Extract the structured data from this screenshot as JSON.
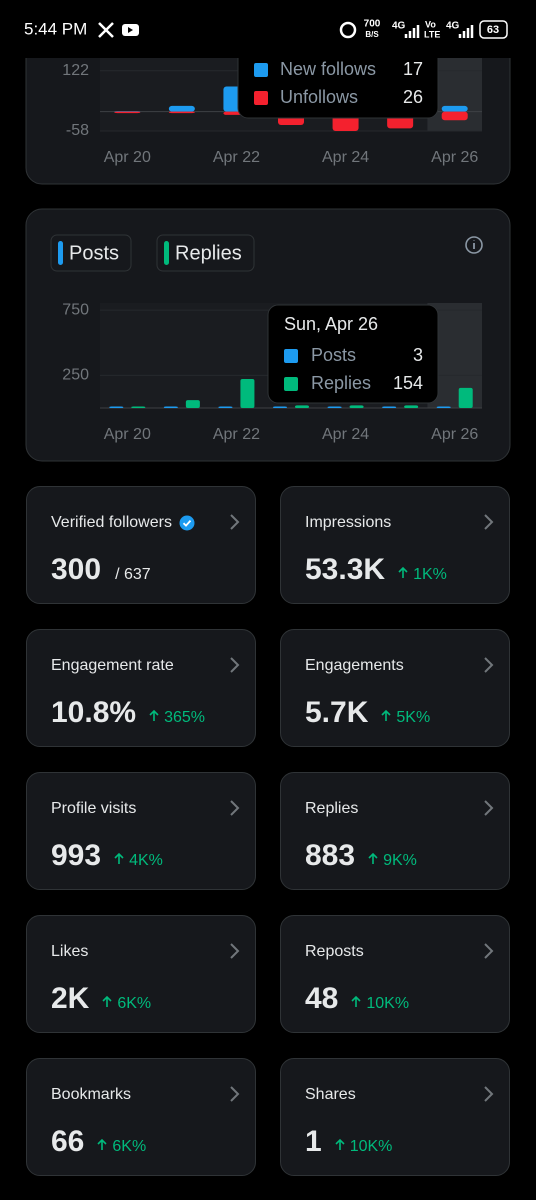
{
  "status_bar": {
    "time": "5:44 PM",
    "speed": "700",
    "speed_unit": "B/S",
    "network": "4G",
    "volte_top": "Vo",
    "volte_bottom": "LTE",
    "battery": "63"
  },
  "chart_data": [
    {
      "type": "bar",
      "categories": [
        "Apr 20",
        null,
        "Apr 22",
        null,
        "Apr 24",
        null,
        "Apr 26"
      ],
      "series": [
        {
          "name": "New follows",
          "color": "#1d9bf0",
          "values": [
            1,
            17,
            75,
            0,
            0,
            0,
            17
          ]
        },
        {
          "name": "Unfollows",
          "color": "#f4212e",
          "values": [
            -3,
            0,
            -10,
            -40,
            -58,
            -50,
            -26
          ],
          "value_labels": [
            null,
            null,
            null,
            null,
            null,
            null,
            "26"
          ]
        }
      ],
      "ylim": [
        -58,
        190
      ],
      "yticks": [
        -58,
        122
      ],
      "grid": true
    },
    {
      "type": "grouped_bar",
      "tooltip_title": "Sun, Apr 26",
      "categories": [
        "Apr 20",
        null,
        "Apr 22",
        null,
        "Apr 24",
        null,
        "Apr 26"
      ],
      "series": [
        {
          "name": "Posts",
          "color": "#1d9bf0",
          "values": [
            3,
            2,
            3,
            2,
            2,
            2,
            3
          ]
        },
        {
          "name": "Replies",
          "color": "#00ba7c",
          "values": [
            2,
            60,
            222,
            20,
            20,
            20,
            154
          ]
        }
      ],
      "ylim": [
        0,
        805
      ],
      "yticks": [
        250,
        750
      ],
      "grid": true
    }
  ],
  "stats": [
    {
      "title": "Verified followers",
      "value": "300",
      "total": "/ 637"
    },
    {
      "title": "Impressions",
      "value": "53.3K",
      "change": "1K%"
    },
    {
      "title": "Engagement rate",
      "value": "10.8%",
      "change": "365%"
    },
    {
      "title": "Engagements",
      "value": "5.7K",
      "change": "5K%"
    },
    {
      "title": "Profile visits",
      "value": "993",
      "change": "4K%"
    },
    {
      "title": "Replies",
      "value": "883",
      "change": "9K%"
    },
    {
      "title": "Likes",
      "value": "2K",
      "change": "6K%"
    },
    {
      "title": "Reposts",
      "value": "48",
      "change": "10K%"
    },
    {
      "title": "Bookmarks",
      "value": "66",
      "change": "6K%"
    },
    {
      "title": "Shares",
      "value": "1",
      "change": "10K%"
    }
  ]
}
